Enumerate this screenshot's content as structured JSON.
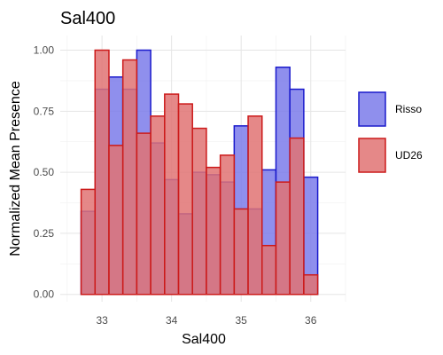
{
  "chart_data": {
    "type": "histogram",
    "title": "Sal400",
    "xlabel": "Sal400",
    "ylabel": "Normalized Mean Presence",
    "xlim": [
      32.4,
      36.5
    ],
    "ylim": [
      -0.03,
      1.06
    ],
    "x_ticks": [
      33,
      34,
      35,
      36
    ],
    "x_tick_labels": [
      "33",
      "34",
      "35",
      "36"
    ],
    "y_ticks": [
      0,
      0.25,
      0.5,
      0.75,
      1.0
    ],
    "y_tick_labels": [
      "0.00",
      "0.25",
      "0.50",
      "0.75",
      "1.00"
    ],
    "grid": true,
    "legend_position": "right",
    "bin_width": 0.2,
    "bin_centers": [
      32.6,
      32.8,
      33.0,
      33.2,
      33.4,
      33.6,
      33.8,
      34.0,
      34.2,
      34.4,
      34.6,
      34.8,
      35.0,
      35.2,
      35.4,
      35.6,
      35.8,
      36.0,
      36.2
    ],
    "series": [
      {
        "name": "Risso",
        "fill": "#7b7bea",
        "stroke": "#1a1acc",
        "values": [
          0.0,
          0.34,
          0.84,
          0.89,
          0.84,
          1.0,
          0.62,
          0.47,
          0.33,
          0.5,
          0.49,
          0.46,
          0.69,
          0.35,
          0.51,
          0.93,
          0.84,
          0.48,
          null
        ]
      },
      {
        "name": "UD26",
        "fill": "#e07373",
        "stroke": "#cc1a1a",
        "values": [
          null,
          0.43,
          1.0,
          0.61,
          0.96,
          0.66,
          0.73,
          0.82,
          0.78,
          0.68,
          0.52,
          0.57,
          0.35,
          0.73,
          0.2,
          0.46,
          0.64,
          0.08,
          null
        ]
      }
    ]
  }
}
